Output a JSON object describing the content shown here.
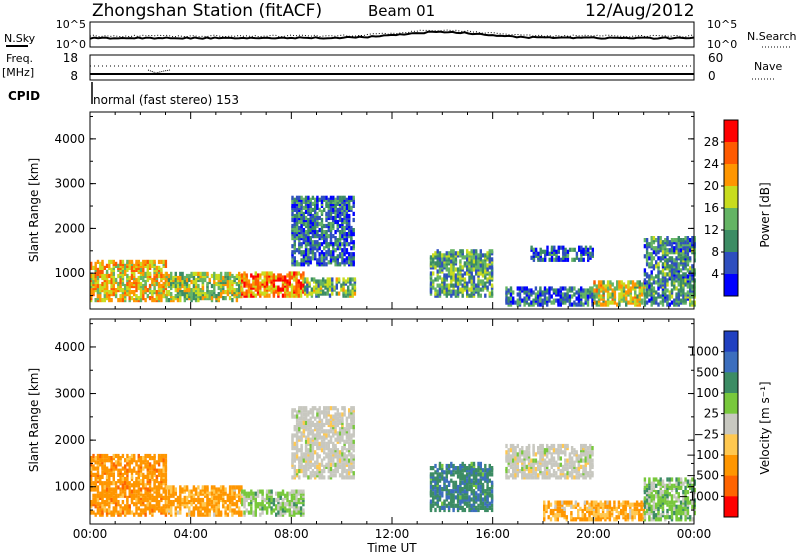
{
  "header": {
    "station": "Zhongshan Station (fitACF)",
    "beam": "Beam 01",
    "date": "12/Aug/2012"
  },
  "top_panels": {
    "nsky_label": "N.Sky",
    "nsearch_label": "N.Search",
    "noise_tick_high": "10^5",
    "noise_tick_low": "10^0",
    "freq_label": "Freq.",
    "freq_unit": "[MHz]",
    "freq_ticks": [
      "18",
      "8"
    ],
    "nave_label": "Nave",
    "nave_ticks": [
      "60",
      "0"
    ],
    "cpid_label": "CPID",
    "cpid_text": "normal (fast stereo) 153"
  },
  "chart_data": [
    {
      "type": "heatmap",
      "title": "",
      "xlabel": "Time UT",
      "ylabel": "Slant Range [km]",
      "x_ticks": [
        "00:00",
        "04:00",
        "08:00",
        "12:00",
        "16:00",
        "20:00",
        "00:00"
      ],
      "x_range_hours": [
        0,
        24
      ],
      "y_ticks": [
        1000,
        2000,
        3000,
        4000
      ],
      "ylim": [
        200,
        4600
      ],
      "colorbar": {
        "label": "Power [dB]",
        "ticks": [
          4,
          8,
          12,
          16,
          20,
          24,
          28
        ],
        "range": [
          0,
          32
        ],
        "colors": [
          "#0000ff",
          "#2f4fbf",
          "#3c8c64",
          "#64b464",
          "#c8dc1e",
          "#ff9600",
          "#ff5a00",
          "#ff0000"
        ]
      },
      "regions": [
        {
          "t": [
            0,
            3
          ],
          "r": [
            400,
            1300
          ],
          "level": 20
        },
        {
          "t": [
            3,
            6
          ],
          "r": [
            400,
            1000
          ],
          "level": 16
        },
        {
          "t": [
            6,
            8.5
          ],
          "r": [
            500,
            1000
          ],
          "level": 24
        },
        {
          "t": [
            8,
            10.5
          ],
          "r": [
            1200,
            2700
          ],
          "level": 8
        },
        {
          "t": [
            8.5,
            10.5
          ],
          "r": [
            500,
            900
          ],
          "level": 14
        },
        {
          "t": [
            13.5,
            16
          ],
          "r": [
            500,
            1500
          ],
          "level": 12
        },
        {
          "t": [
            16.5,
            20
          ],
          "r": [
            300,
            700
          ],
          "level": 8
        },
        {
          "t": [
            17.5,
            20
          ],
          "r": [
            1300,
            1600
          ],
          "level": 6
        },
        {
          "t": [
            20,
            22
          ],
          "r": [
            300,
            800
          ],
          "level": 18
        },
        {
          "t": [
            22,
            24
          ],
          "r": [
            300,
            1800
          ],
          "level": 10
        }
      ]
    },
    {
      "type": "heatmap",
      "title": "",
      "xlabel": "Time UT",
      "ylabel": "Slant Range [km]",
      "x_ticks": [
        "00:00",
        "04:00",
        "08:00",
        "12:00",
        "16:00",
        "20:00",
        "00:00"
      ],
      "x_range_hours": [
        0,
        24
      ],
      "y_ticks": [
        1000,
        2000,
        3000,
        4000
      ],
      "ylim": [
        200,
        4600
      ],
      "colorbar": {
        "label": "Velocity [m s⁻¹]",
        "ticks": [
          "1000",
          "500",
          "100",
          "25",
          "−25",
          "−100",
          "−500",
          "−1000"
        ],
        "colors": [
          "#2040c0",
          "#3c6ebe",
          "#3c8c64",
          "#78c83c",
          "#c8c8c0",
          "#ffc850",
          "#ff9600",
          "#ff6400",
          "#ff0000"
        ]
      },
      "regions": [
        {
          "t": [
            0,
            3
          ],
          "r": [
            400,
            1700
          ],
          "level": -300
        },
        {
          "t": [
            3,
            6
          ],
          "r": [
            400,
            1000
          ],
          "level": -150
        },
        {
          "t": [
            6,
            8.5
          ],
          "r": [
            400,
            900
          ],
          "level": 50
        },
        {
          "t": [
            8,
            10.5
          ],
          "r": [
            1200,
            2700
          ],
          "level": 0
        },
        {
          "t": [
            13.5,
            16
          ],
          "r": [
            500,
            1500
          ],
          "level": 400
        },
        {
          "t": [
            16.5,
            20
          ],
          "r": [
            1200,
            1900
          ],
          "level": 0
        },
        {
          "t": [
            18,
            22
          ],
          "r": [
            300,
            700
          ],
          "level": -120
        },
        {
          "t": [
            22,
            24
          ],
          "r": [
            300,
            1200
          ],
          "level": 60
        }
      ]
    }
  ]
}
